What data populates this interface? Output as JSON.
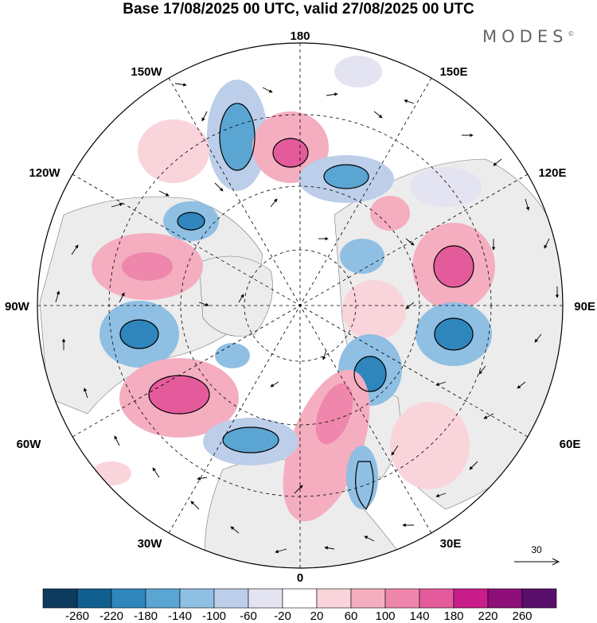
{
  "title": "Base 17/08/2025 00 UTC, valid 27/08/2025 00 UTC",
  "brand": "MODES",
  "brand_mark": "©",
  "longitude_labels": {
    "top": "180",
    "bottom": "0",
    "left": "90W",
    "right": "90E",
    "upper_left_1": "150W",
    "upper_left_2": "120W",
    "upper_right_1": "150E",
    "upper_right_2": "120E",
    "lower_left_1": "60W",
    "lower_left_2": "30W",
    "lower_right_1": "60E",
    "lower_right_2": "30E"
  },
  "reference_vector": {
    "label": "30",
    "icon": "arrow-right-icon"
  },
  "colorbar": {
    "colors": [
      "#0d3b5e",
      "#115f8f",
      "#2f86bd",
      "#5ba5d3",
      "#8fbfe3",
      "#bccee9",
      "#e4e3f1",
      "#ffffff",
      "#f9d5db",
      "#f4aec0",
      "#ef86ab",
      "#e45b9c",
      "#c81d8b",
      "#8e0f7a",
      "#5a0f6b"
    ],
    "ticks": [
      "-260",
      "-220",
      "-180",
      "-140",
      "-100",
      "-60",
      "-20",
      "20",
      "60",
      "100",
      "140",
      "180",
      "220",
      "260"
    ]
  }
}
